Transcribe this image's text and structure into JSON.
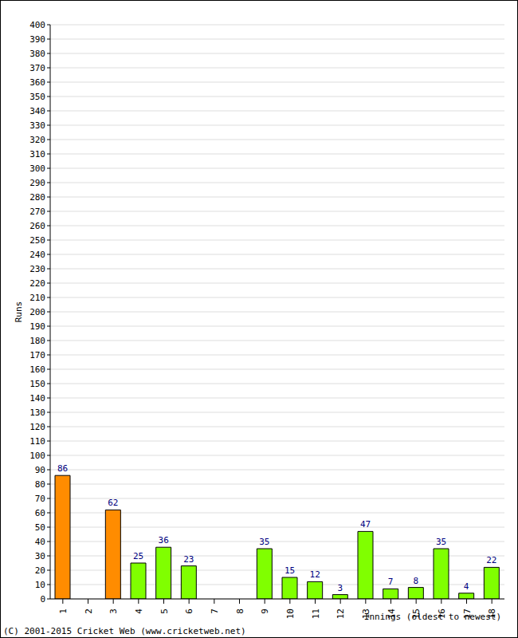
{
  "chart_data": {
    "type": "bar",
    "x_label": "Innings (oldest to newest)",
    "y_label": "Runs",
    "annotations": [
      "(C) 2001-2015 Cricket Web (www.cricketweb.net)"
    ],
    "categories": [
      "1",
      "2",
      "3",
      "4",
      "5",
      "6",
      "7",
      "8",
      "9",
      "10",
      "11",
      "12",
      "13",
      "14",
      "15",
      "16",
      "17",
      "18"
    ],
    "values": [
      86,
      0,
      62,
      25,
      36,
      23,
      0,
      0,
      35,
      15,
      12,
      3,
      47,
      7,
      8,
      35,
      4,
      22
    ],
    "colors": [
      "#ff8c00",
      "#80ff00",
      "#ff8c00",
      "#80ff00",
      "#80ff00",
      "#80ff00",
      "#80ff00",
      "#80ff00",
      "#80ff00",
      "#80ff00",
      "#80ff00",
      "#80ff00",
      "#80ff00",
      "#80ff00",
      "#80ff00",
      "#80ff00",
      "#80ff00",
      "#80ff00"
    ],
    "ylim": [
      0,
      400
    ],
    "yticks": [
      0,
      10,
      20,
      30,
      40,
      50,
      60,
      70,
      80,
      90,
      100,
      110,
      120,
      130,
      140,
      150,
      160,
      170,
      180,
      190,
      200,
      210,
      220,
      230,
      240,
      250,
      260,
      270,
      280,
      290,
      300,
      310,
      320,
      330,
      340,
      350,
      360,
      370,
      380,
      390,
      400
    ],
    "grid": true,
    "data_labels": true
  }
}
